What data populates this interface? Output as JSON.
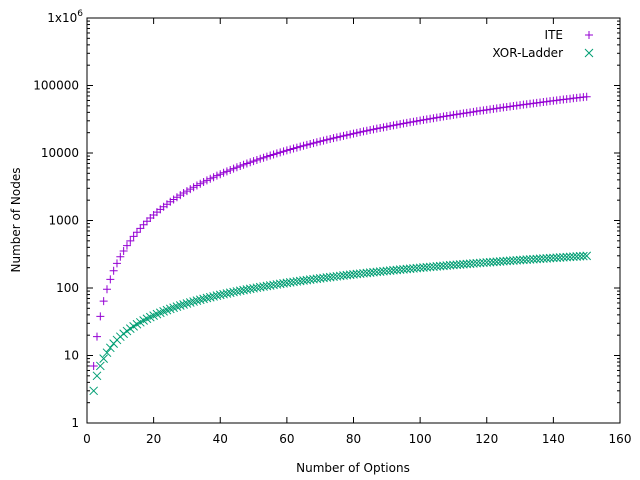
{
  "chart_data": {
    "type": "scatter",
    "xlabel": "Number of Options",
    "ylabel": "Number of Nodes",
    "xlim": [
      0,
      160
    ],
    "ylim": [
      1,
      1000000
    ],
    "y_scale": "log",
    "grid": false,
    "legend_position": "top-right",
    "x_ticks": [
      {
        "value": 0,
        "label": "0"
      },
      {
        "value": 20,
        "label": "20"
      },
      {
        "value": 40,
        "label": "40"
      },
      {
        "value": 60,
        "label": "60"
      },
      {
        "value": 80,
        "label": "80"
      },
      {
        "value": 100,
        "label": "100"
      },
      {
        "value": 120,
        "label": "120"
      },
      {
        "value": 140,
        "label": "140"
      },
      {
        "value": 160,
        "label": "160"
      }
    ],
    "y_ticks": [
      {
        "value": 1,
        "label": "1"
      },
      {
        "value": 10,
        "label": "10"
      },
      {
        "value": 100,
        "label": "100"
      },
      {
        "value": 1000,
        "label": "1000"
      },
      {
        "value": 10000,
        "label": "10000"
      },
      {
        "value": 100000,
        "label": "100000"
      },
      {
        "value": 1000000,
        "label": "1x10",
        "sup": "6"
      }
    ],
    "series": [
      {
        "name": "ITE",
        "marker": "plus",
        "color": "#9400d3",
        "x": [
          2,
          3,
          4,
          5,
          6,
          7,
          8,
          9,
          10,
          11,
          12,
          13,
          14,
          15,
          16,
          17,
          18,
          19,
          20,
          21,
          22,
          23,
          24,
          25,
          26,
          27,
          28,
          29,
          30,
          31,
          32,
          33,
          34,
          35,
          36,
          37,
          38,
          39,
          40,
          41,
          42,
          43,
          44,
          45,
          46,
          47,
          48,
          49,
          50,
          51,
          52,
          53,
          54,
          55,
          56,
          57,
          58,
          59,
          60,
          61,
          62,
          63,
          64,
          65,
          66,
          67,
          68,
          69,
          70,
          71,
          72,
          73,
          74,
          75,
          76,
          77,
          78,
          79,
          80,
          81,
          82,
          83,
          84,
          85,
          86,
          87,
          88,
          89,
          90,
          91,
          92,
          93,
          94,
          95,
          96,
          97,
          98,
          99,
          100,
          101,
          102,
          103,
          104,
          105,
          106,
          107,
          108,
          109,
          110,
          111,
          112,
          113,
          114,
          115,
          116,
          117,
          118,
          119,
          120,
          121,
          122,
          123,
          124,
          125,
          126,
          127,
          128,
          129,
          130,
          131,
          132,
          133,
          134,
          135,
          136,
          137,
          138,
          139,
          140,
          141,
          142,
          143,
          144,
          145,
          146,
          147,
          148,
          149,
          150
        ],
        "y": [
          7,
          19,
          38,
          64,
          96,
          134,
          180,
          232,
          290,
          354,
          424,
          500,
          583,
          671,
          766,
          866,
          973,
          1087,
          1206,
          1331,
          1462,
          1599,
          1743,
          1892,
          2048,
          2209,
          2376,
          2550,
          2729,
          2915,
          3106,
          3303,
          3507,
          3716,
          3932,
          4153,
          4381,
          4614,
          4854,
          5100,
          5352,
          5610,
          5874,
          6144,
          6419,
          6701,
          6990,
          7284,
          7584,
          7890,
          8202,
          8520,
          8844,
          9174,
          9510,
          9853,
          10201,
          10555,
          10916,
          11282,
          11654,
          12033,
          12417,
          12808,
          13204,
          13607,
          14016,
          14430,
          14851,
          15278,
          15711,
          16150,
          16595,
          17046,
          17503,
          17966,
          18435,
          18910,
          19391,
          19879,
          20372,
          20871,
          21377,
          21888,
          22406,
          22929,
          23459,
          23995,
          24536,
          25084,
          25638,
          26198,
          26764,
          27336,
          27914,
          28498,
          29088,
          29684,
          30287,
          30895,
          31509,
          32130,
          32756,
          33389,
          34028,
          34673,
          35324,
          35981,
          36644,
          37314,
          37989,
          38671,
          39359,
          40053,
          40753,
          41459,
          42171,
          42890,
          43615,
          44345,
          45083,
          45826,
          46575,
          47331,
          48093,
          48861,
          49635,
          50416,
          51202,
          51995,
          52794,
          53599,
          54411,
          55228,
          56052,
          56882,
          57718,
          58561,
          59409,
          60264,
          61125,
          61993,
          62866,
          63746,
          64632,
          65524,
          66423,
          67327,
          68238
        ]
      },
      {
        "name": "XOR-Ladder",
        "marker": "cross",
        "color": "#009e73",
        "x": [
          2,
          3,
          4,
          5,
          6,
          7,
          8,
          9,
          10,
          11,
          12,
          13,
          14,
          15,
          16,
          17,
          18,
          19,
          20,
          21,
          22,
          23,
          24,
          25,
          26,
          27,
          28,
          29,
          30,
          31,
          32,
          33,
          34,
          35,
          36,
          37,
          38,
          39,
          40,
          41,
          42,
          43,
          44,
          45,
          46,
          47,
          48,
          49,
          50,
          51,
          52,
          53,
          54,
          55,
          56,
          57,
          58,
          59,
          60,
          61,
          62,
          63,
          64,
          65,
          66,
          67,
          68,
          69,
          70,
          71,
          72,
          73,
          74,
          75,
          76,
          77,
          78,
          79,
          80,
          81,
          82,
          83,
          84,
          85,
          86,
          87,
          88,
          89,
          90,
          91,
          92,
          93,
          94,
          95,
          96,
          97,
          98,
          99,
          100,
          101,
          102,
          103,
          104,
          105,
          106,
          107,
          108,
          109,
          110,
          111,
          112,
          113,
          114,
          115,
          116,
          117,
          118,
          119,
          120,
          121,
          122,
          123,
          124,
          125,
          126,
          127,
          128,
          129,
          130,
          131,
          132,
          133,
          134,
          135,
          136,
          137,
          138,
          139,
          140,
          141,
          142,
          143,
          144,
          145,
          146,
          147,
          148,
          149,
          150
        ],
        "y": [
          3,
          5,
          7,
          9,
          11,
          13,
          15,
          17,
          19,
          21,
          23,
          25,
          27,
          29,
          31,
          33,
          35,
          37,
          39,
          41,
          43,
          45,
          47,
          49,
          51,
          53,
          55,
          57,
          59,
          61,
          63,
          65,
          67,
          69,
          71,
          73,
          75,
          77,
          79,
          81,
          83,
          85,
          87,
          89,
          91,
          93,
          95,
          97,
          99,
          101,
          103,
          105,
          107,
          109,
          111,
          113,
          115,
          117,
          119,
          121,
          123,
          125,
          127,
          129,
          131,
          133,
          135,
          137,
          139,
          141,
          143,
          145,
          147,
          149,
          151,
          153,
          155,
          157,
          159,
          161,
          163,
          165,
          167,
          169,
          171,
          173,
          175,
          177,
          179,
          181,
          183,
          185,
          187,
          189,
          191,
          193,
          195,
          197,
          199,
          201,
          203,
          205,
          207,
          209,
          211,
          213,
          215,
          217,
          219,
          221,
          223,
          225,
          227,
          229,
          231,
          233,
          235,
          237,
          239,
          241,
          243,
          245,
          247,
          249,
          251,
          253,
          255,
          257,
          259,
          261,
          263,
          265,
          267,
          269,
          271,
          273,
          275,
          277,
          279,
          281,
          283,
          285,
          287,
          289,
          291,
          293,
          295,
          297,
          299
        ]
      }
    ]
  }
}
